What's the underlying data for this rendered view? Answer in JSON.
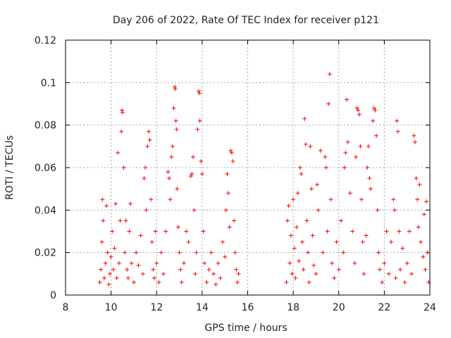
{
  "chart_data": {
    "type": "scatter",
    "title": "Day 206 of 2022, Rate Of TEC Index for receiver p121",
    "xlabel": "GPS time / hours",
    "ylabel": "ROTI / TECUs",
    "xlim": [
      8,
      24
    ],
    "ylim": [
      0,
      0.12
    ],
    "xticks": [
      8,
      10,
      12,
      14,
      16,
      18,
      20,
      22,
      24
    ],
    "xtick_labels": [
      "8",
      "10",
      "12",
      "14",
      "16",
      "18",
      "20",
      "22",
      "24"
    ],
    "yticks": [
      0,
      0.02,
      0.04,
      0.06,
      0.08,
      0.1,
      0.12
    ],
    "ytick_labels": [
      "0",
      "0.02",
      "0.04",
      "0.06",
      "0.08",
      "0.1",
      "0.12"
    ],
    "grid": true,
    "marker": "+",
    "color": "#ff0000",
    "series": [
      {
        "points": [
          [
            9.5,
            0.006
          ],
          [
            9.55,
            0.012
          ],
          [
            9.6,
            0.025
          ],
          [
            9.62,
            0.045
          ],
          [
            9.65,
            0.035
          ],
          [
            9.7,
            0.008
          ],
          [
            9.75,
            0.015
          ],
          [
            9.8,
            0.042
          ],
          [
            9.85,
            0.02
          ],
          [
            9.9,
            0.005
          ],
          [
            9.95,
            0.01
          ],
          [
            10.0,
            0.018
          ],
          [
            10.05,
            0.03
          ],
          [
            10.1,
            0.012
          ],
          [
            10.15,
            0.022
          ],
          [
            10.2,
            0.043
          ],
          [
            10.25,
            0.008
          ],
          [
            10.3,
            0.067
          ],
          [
            10.35,
            0.015
          ],
          [
            10.4,
            0.035
          ],
          [
            10.45,
            0.077
          ],
          [
            10.48,
            0.087
          ],
          [
            10.5,
            0.086
          ],
          [
            10.55,
            0.06
          ],
          [
            10.6,
            0.02
          ],
          [
            10.65,
            0.035
          ],
          [
            10.7,
            0.012
          ],
          [
            10.75,
            0.008
          ],
          [
            10.8,
            0.03
          ],
          [
            10.85,
            0.043
          ],
          [
            10.9,
            0.015
          ],
          [
            11.0,
            0.006
          ],
          [
            11.1,
            0.02
          ],
          [
            11.2,
            0.014
          ],
          [
            11.3,
            0.028
          ],
          [
            11.4,
            0.01
          ],
          [
            11.45,
            0.055
          ],
          [
            11.5,
            0.06
          ],
          [
            11.55,
            0.04
          ],
          [
            11.6,
            0.07
          ],
          [
            11.65,
            0.077
          ],
          [
            11.7,
            0.073
          ],
          [
            11.75,
            0.045
          ],
          [
            11.8,
            0.025
          ],
          [
            11.85,
            0.012
          ],
          [
            11.9,
            0.008
          ],
          [
            11.95,
            0.03
          ],
          [
            12.0,
            0.015
          ],
          [
            12.1,
            0.006
          ],
          [
            12.2,
            0.02
          ],
          [
            12.3,
            0.01
          ],
          [
            12.4,
            0.03
          ],
          [
            12.5,
            0.058
          ],
          [
            12.55,
            0.055
          ],
          [
            12.6,
            0.045
          ],
          [
            12.65,
            0.065
          ],
          [
            12.7,
            0.07
          ],
          [
            12.75,
            0.088
          ],
          [
            12.8,
            0.098
          ],
          [
            12.82,
            0.097
          ],
          [
            12.85,
            0.082
          ],
          [
            12.88,
            0.078
          ],
          [
            12.9,
            0.05
          ],
          [
            12.95,
            0.032
          ],
          [
            13.0,
            0.02
          ],
          [
            13.05,
            0.012
          ],
          [
            13.1,
            0.006
          ],
          [
            13.2,
            0.015
          ],
          [
            13.3,
            0.03
          ],
          [
            13.4,
            0.025
          ],
          [
            13.5,
            0.056
          ],
          [
            13.55,
            0.057
          ],
          [
            13.6,
            0.065
          ],
          [
            13.65,
            0.04
          ],
          [
            13.7,
            0.01
          ],
          [
            13.75,
            0.02
          ],
          [
            13.8,
            0.078
          ],
          [
            13.85,
            0.096
          ],
          [
            13.88,
            0.095
          ],
          [
            13.9,
            0.082
          ],
          [
            13.95,
            0.063
          ],
          [
            14.0,
            0.057
          ],
          [
            14.05,
            0.03
          ],
          [
            14.1,
            0.015
          ],
          [
            14.2,
            0.006
          ],
          [
            14.3,
            0.012
          ],
          [
            14.4,
            0.02
          ],
          [
            14.5,
            0.01
          ],
          [
            14.6,
            0.005
          ],
          [
            14.7,
            0.015
          ],
          [
            14.8,
            0.008
          ],
          [
            14.9,
            0.025
          ],
          [
            15.0,
            0.018
          ],
          [
            15.05,
            0.04
          ],
          [
            15.1,
            0.057
          ],
          [
            15.15,
            0.048
          ],
          [
            15.2,
            0.032
          ],
          [
            15.25,
            0.068
          ],
          [
            15.3,
            0.067
          ],
          [
            15.35,
            0.063
          ],
          [
            15.4,
            0.035
          ],
          [
            15.45,
            0.02
          ],
          [
            15.5,
            0.012
          ],
          [
            15.55,
            0.006
          ],
          [
            15.6,
            0.01
          ],
          [
            17.7,
            0.006
          ],
          [
            17.75,
            0.035
          ],
          [
            17.8,
            0.042
          ],
          [
            17.85,
            0.015
          ],
          [
            17.9,
            0.028
          ],
          [
            17.95,
            0.01
          ],
          [
            18.0,
            0.045
          ],
          [
            18.05,
            0.022
          ],
          [
            18.1,
            0.008
          ],
          [
            18.15,
            0.032
          ],
          [
            18.2,
            0.048
          ],
          [
            18.25,
            0.016
          ],
          [
            18.3,
            0.06
          ],
          [
            18.35,
            0.057
          ],
          [
            18.4,
            0.025
          ],
          [
            18.45,
            0.012
          ],
          [
            18.5,
            0.083
          ],
          [
            18.55,
            0.071
          ],
          [
            18.6,
            0.035
          ],
          [
            18.65,
            0.02
          ],
          [
            18.7,
            0.006
          ],
          [
            18.75,
            0.07
          ],
          [
            18.8,
            0.05
          ],
          [
            18.85,
            0.028
          ],
          [
            18.9,
            0.014
          ],
          [
            19.0,
            0.01
          ],
          [
            19.05,
            0.052
          ],
          [
            19.1,
            0.04
          ],
          [
            19.2,
            0.068
          ],
          [
            19.3,
            0.02
          ],
          [
            19.4,
            0.065
          ],
          [
            19.45,
            0.06
          ],
          [
            19.5,
            0.03
          ],
          [
            19.55,
            0.09
          ],
          [
            19.6,
            0.104
          ],
          [
            19.65,
            0.045
          ],
          [
            19.7,
            0.015
          ],
          [
            19.8,
            0.008
          ],
          [
            19.9,
            0.025
          ],
          [
            20.0,
            0.012
          ],
          [
            20.1,
            0.035
          ],
          [
            20.2,
            0.02
          ],
          [
            20.25,
            0.06
          ],
          [
            20.3,
            0.067
          ],
          [
            20.35,
            0.092
          ],
          [
            20.4,
            0.072
          ],
          [
            20.5,
            0.048
          ],
          [
            20.6,
            0.03
          ],
          [
            20.7,
            0.015
          ],
          [
            20.75,
            0.065
          ],
          [
            20.8,
            0.088
          ],
          [
            20.85,
            0.087
          ],
          [
            20.9,
            0.085
          ],
          [
            20.95,
            0.07
          ],
          [
            21.0,
            0.045
          ],
          [
            21.05,
            0.025
          ],
          [
            21.1,
            0.01
          ],
          [
            21.2,
            0.028
          ],
          [
            21.25,
            0.06
          ],
          [
            21.3,
            0.07
          ],
          [
            21.35,
            0.055
          ],
          [
            21.4,
            0.05
          ],
          [
            21.5,
            0.082
          ],
          [
            21.55,
            0.088
          ],
          [
            21.6,
            0.087
          ],
          [
            21.65,
            0.075
          ],
          [
            21.7,
            0.04
          ],
          [
            21.75,
            0.02
          ],
          [
            21.8,
            0.012
          ],
          [
            21.9,
            0.006
          ],
          [
            22.0,
            0.015
          ],
          [
            22.1,
            0.03
          ],
          [
            22.2,
            0.01
          ],
          [
            22.3,
            0.025
          ],
          [
            22.4,
            0.045
          ],
          [
            22.45,
            0.04
          ],
          [
            22.5,
            0.008
          ],
          [
            22.55,
            0.082
          ],
          [
            22.6,
            0.077
          ],
          [
            22.65,
            0.03
          ],
          [
            22.7,
            0.012
          ],
          [
            22.8,
            0.022
          ],
          [
            22.9,
            0.006
          ],
          [
            23.0,
            0.015
          ],
          [
            23.1,
            0.03
          ],
          [
            23.2,
            0.01
          ],
          [
            23.3,
            0.075
          ],
          [
            23.35,
            0.072
          ],
          [
            23.4,
            0.055
          ],
          [
            23.45,
            0.045
          ],
          [
            23.5,
            0.032
          ],
          [
            23.55,
            0.052
          ],
          [
            23.6,
            0.025
          ],
          [
            23.7,
            0.018
          ],
          [
            23.75,
            0.038
          ],
          [
            23.8,
            0.012
          ],
          [
            23.85,
            0.044
          ],
          [
            23.9,
            0.02
          ],
          [
            23.95,
            0.006
          ]
        ]
      }
    ]
  }
}
